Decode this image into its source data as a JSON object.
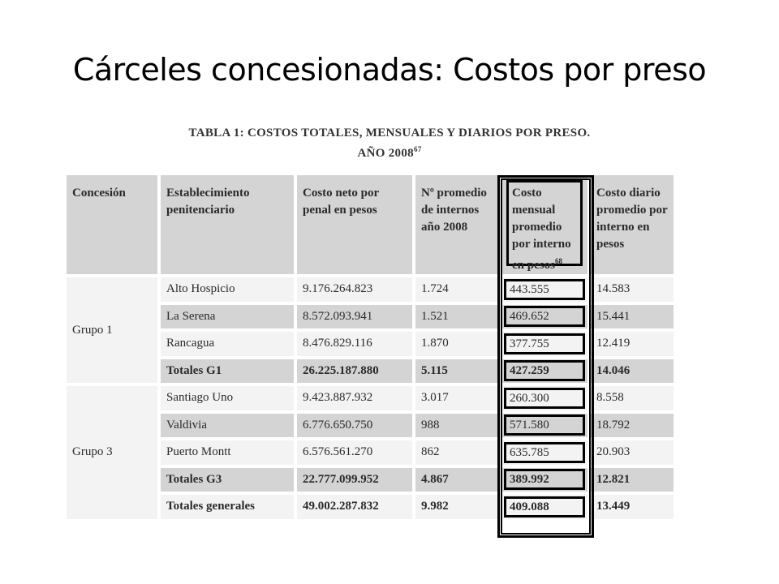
{
  "slide": {
    "title": "Cárceles concesionadas: Costos por preso"
  },
  "caption": {
    "line1": "TABLA 1: COSTOS TOTALES, MENSUALES Y DIARIOS POR PRESO.",
    "line2": "AÑO 2008",
    "footnote_mark": "67"
  },
  "table": {
    "headers": [
      "Concesión",
      "Establecimiento penitenciario",
      "Costo neto por penal en pesos",
      "Nº promedio de internos año 2008",
      "Costo mensual promedio por interno en pesos",
      "Costo diario promedio por interno en pesos"
    ],
    "header_footnote": "68",
    "groups": [
      {
        "name": "Grupo 1",
        "rows": [
          {
            "establecimiento": "Alto Hospicio",
            "costo_neto": "9.176.264.823",
            "internos": "1.724",
            "mensual": "443.555",
            "diario": "14.583"
          },
          {
            "establecimiento": "La Serena",
            "costo_neto": "8.572.093.941",
            "internos": "1.521",
            "mensual": "469.652",
            "diario": "15.441"
          },
          {
            "establecimiento": "Rancagua",
            "costo_neto": "8.476.829.116",
            "internos": "1.870",
            "mensual": "377.755",
            "diario": "12.419"
          },
          {
            "establecimiento": "Totales G1",
            "costo_neto": "26.225.187.880",
            "internos": "5.115",
            "mensual": "427.259",
            "diario": "14.046"
          }
        ]
      },
      {
        "name": "Grupo 3",
        "rows": [
          {
            "establecimiento": "Santiago Uno",
            "costo_neto": "9.423.887.932",
            "internos": "3.017",
            "mensual": "260.300",
            "diario": "8.558"
          },
          {
            "establecimiento": "Valdivia",
            "costo_neto": "6.776.650.750",
            "internos": "988",
            "mensual": "571.580",
            "diario": "18.792"
          },
          {
            "establecimiento": "Puerto Montt",
            "costo_neto": "6.576.561.270",
            "internos": "862",
            "mensual": "635.785",
            "diario": "20.903"
          },
          {
            "establecimiento": "Totales G3",
            "costo_neto": "22.777.099.952",
            "internos": "4.867",
            "mensual": "389.992",
            "diario": "12.821"
          },
          {
            "establecimiento": "Totales generales",
            "costo_neto": "49.002.287.832",
            "internos": "9.982",
            "mensual": "409.088",
            "diario": "13.449"
          }
        ]
      }
    ]
  }
}
